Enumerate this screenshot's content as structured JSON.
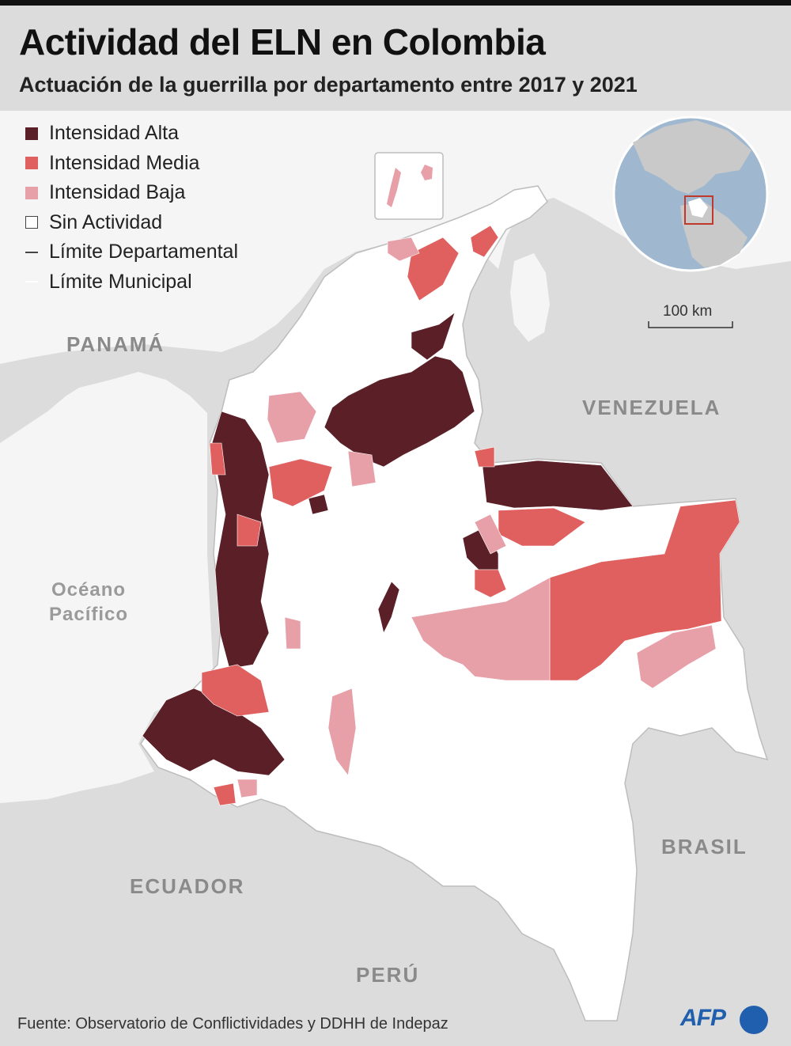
{
  "title": "Actividad del ELN en Colombia",
  "subtitle": "Actuación de la guerrilla por departamento entre 2017 y 2021",
  "legend": {
    "items": [
      {
        "label": "Intensidad Alta",
        "color": "#5a1f27"
      },
      {
        "label": "Intensidad Media",
        "color": "#e06060"
      },
      {
        "label": "Intensidad Baja",
        "color": "#e8a0a8"
      },
      {
        "label": "Sin Actividad",
        "color": "#ffffff"
      },
      {
        "label": "Límite Departamental",
        "color": "#444444"
      },
      {
        "label": "Límite Municipal",
        "color": "#ffffff"
      }
    ]
  },
  "labels": {
    "panama": "PANAMÁ",
    "venezuela": "VENEZUELA",
    "brasil": "BRASIL",
    "ecuador": "ECUADOR",
    "peru": "PERÚ",
    "ocean_line1": "Océano",
    "ocean_line2": "Pacífico"
  },
  "scale": {
    "label": "100 km"
  },
  "source": "Fuente: Observatorio de Conflictividades y DDHH de Indepaz",
  "logo": "AFP",
  "colors": {
    "land_foreign": "#dcdcdc",
    "sea": "#f5f5f5",
    "colombia": "#ffffff",
    "alta": "#5a1f27",
    "media": "#e06060",
    "baja": "#e8a0a8",
    "globe_sea": "#9fb8cf",
    "globe_land": "#c9c9c9",
    "afp_blue": "#1f5fae"
  }
}
